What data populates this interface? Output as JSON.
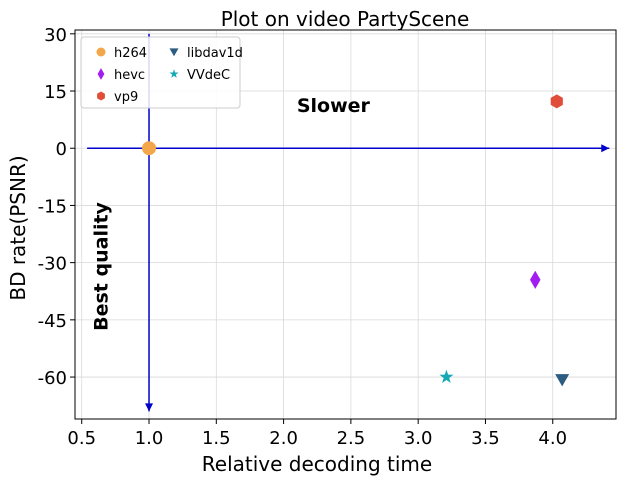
{
  "chart_data": {
    "type": "scatter",
    "title": "Plot on video PartyScene",
    "xlabel": "Relative decoding time",
    "ylabel": "BD rate(PSNR)",
    "xlim": [
      0.45,
      4.47
    ],
    "ylim": [
      -71,
      31
    ],
    "xticks": [
      0.5,
      1.0,
      1.5,
      2.0,
      2.5,
      3.0,
      3.5,
      4.0
    ],
    "xtick_labels": [
      "0.5",
      "1.0",
      "1.5",
      "2.0",
      "2.5",
      "3.0",
      "3.5",
      "4.0"
    ],
    "yticks": [
      30,
      15,
      0,
      -15,
      -30,
      -45,
      -60
    ],
    "ytick_labels": [
      "30",
      "15",
      "0",
      "-15",
      "-30",
      "-45",
      "-60"
    ],
    "grid": true,
    "legend_position": "top-left",
    "series": [
      {
        "name": "h264",
        "marker": "circle",
        "color": "#F4A64A",
        "x": [
          1.0
        ],
        "y": [
          0
        ]
      },
      {
        "name": "hevc",
        "marker": "thin-diamond",
        "color": "#A11DF0",
        "x": [
          3.87
        ],
        "y": [
          -34.5
        ]
      },
      {
        "name": "vp9",
        "marker": "hexagon",
        "color": "#E04E3A",
        "x": [
          4.03
        ],
        "y": [
          12.3
        ]
      },
      {
        "name": "libdav1d",
        "marker": "triangle-down",
        "color": "#2C5C80",
        "x": [
          4.07
        ],
        "y": [
          -60.7
        ]
      },
      {
        "name": "VVdeC",
        "marker": "star",
        "color": "#17A8B5",
        "x": [
          3.21
        ],
        "y": [
          -60
        ]
      }
    ],
    "annotations": [
      {
        "text": "Slower",
        "x": 2.37,
        "y": 9.5,
        "rotation": 0
      },
      {
        "text": "Best quality",
        "x": 0.69,
        "y": -31,
        "rotation": -90
      }
    ],
    "arrows": [
      {
        "from": [
          0.54,
          0
        ],
        "to": [
          4.42,
          0
        ],
        "color": "#0000CC"
      },
      {
        "from": [
          1.0,
          30
        ],
        "to": [
          1.0,
          -69
        ],
        "color": "#0000CC"
      }
    ]
  }
}
